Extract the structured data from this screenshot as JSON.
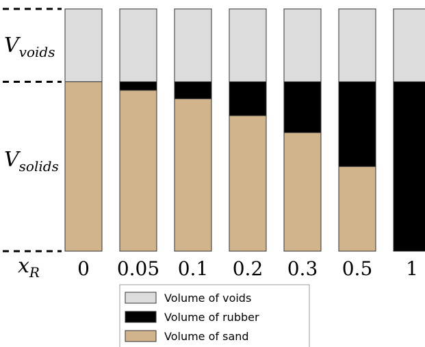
{
  "chart_data": {
    "type": "stacked_bar",
    "categories": [
      "0",
      "0.05",
      "0.1",
      "0.2",
      "0.3",
      "0.5",
      "1"
    ],
    "series": [
      {
        "name": "Volume of voids",
        "color": "#dcdcdc",
        "values": [
          0.43,
          0.43,
          0.43,
          0.43,
          0.43,
          0.43,
          0.43
        ]
      },
      {
        "name": "Volume of rubber",
        "color": "#000000",
        "values": [
          0,
          0.05,
          0.1,
          0.2,
          0.3,
          0.5,
          1
        ]
      },
      {
        "name": "Volume of sand",
        "color": "#d2b48c",
        "values": [
          1,
          0.95,
          0.9,
          0.8,
          0.7,
          0.5,
          0
        ]
      }
    ],
    "annotations": [
      {
        "text": "V",
        "subscript": "voids"
      },
      {
        "text": "V",
        "subscript": "solids"
      }
    ],
    "x_label": {
      "text": "x",
      "subscript": "R"
    }
  }
}
